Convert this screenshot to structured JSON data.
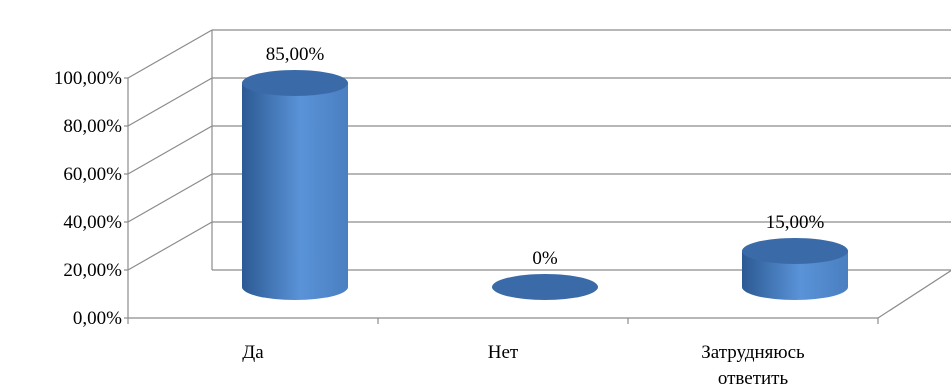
{
  "chart_data": {
    "type": "bar",
    "style": "3d-cylinder",
    "categories": [
      "Да",
      "Нет",
      "Затрудняюсь ответить"
    ],
    "category_lines": [
      [
        "Да"
      ],
      [
        "Нет"
      ],
      [
        "Затрудняюсь",
        "ответить"
      ]
    ],
    "values": [
      85,
      0,
      15
    ],
    "value_labels": [
      "85,00%",
      "0%",
      "15,00%"
    ],
    "title": "",
    "xlabel": "",
    "ylabel": "",
    "ylim": [
      0,
      100
    ],
    "ytick_values": [
      0,
      20,
      40,
      60,
      80,
      100
    ],
    "ytick_labels": [
      "0,00%",
      "20,00%",
      "40,00%",
      "60,00%",
      "80,00%",
      "100,00%"
    ],
    "grid": true,
    "legend": "none",
    "colors": {
      "bar_light": "#5a93d8",
      "bar_mid": "#4a7fc1",
      "bar_dark": "#2c5a93",
      "bar_top": "#3a6aa8",
      "gridline": "#8c8c8c"
    }
  }
}
